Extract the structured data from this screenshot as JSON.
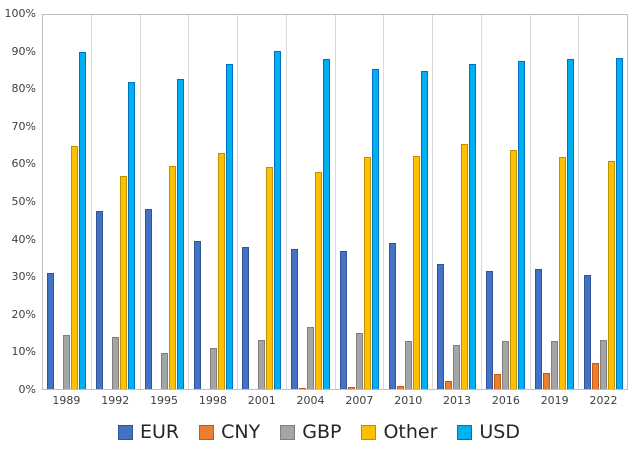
{
  "chart_data": {
    "type": "bar",
    "title": "",
    "xlabel": "",
    "ylabel": "",
    "ylim": [
      0,
      100
    ],
    "grid": "vertical",
    "legend_position": "bottom",
    "y_ticks": [
      "0%",
      "10%",
      "20%",
      "30%",
      "40%",
      "50%",
      "60%",
      "70%",
      "80%",
      "90%",
      "100%"
    ],
    "categories": [
      "1989",
      "1992",
      "1995",
      "1998",
      "2001",
      "2004",
      "2007",
      "2010",
      "2013",
      "2016",
      "2019",
      "2022"
    ],
    "series": [
      {
        "name": "EUR",
        "color": "#4472C4",
        "border": "#2F5597",
        "values": [
          31,
          47.5,
          48,
          39.5,
          38,
          37.5,
          37,
          39,
          33.5,
          31.5,
          32,
          30.5
        ]
      },
      {
        "name": "CNY",
        "color": "#ED7D31",
        "border": "#C55A11",
        "values": [
          0,
          0,
          0,
          0,
          0,
          0.2,
          0.5,
          0.9,
          2.2,
          4,
          4.3,
          7
        ]
      },
      {
        "name": "GBP",
        "color": "#A5A5A5",
        "border": "#7F7F7F",
        "values": [
          14.5,
          13.8,
          9.5,
          11,
          13,
          16.5,
          15,
          12.9,
          11.8,
          12.8,
          12.8,
          13
        ]
      },
      {
        "name": "Other",
        "color": "#FFC000",
        "border": "#BF9000",
        "values": [
          65,
          57,
          59.5,
          63,
          59.3,
          58,
          62,
          62.3,
          65.5,
          64,
          62,
          61
        ]
      },
      {
        "name": "USD",
        "color": "#00B0F0",
        "border": "#0070C0",
        "values": [
          90,
          82,
          83,
          87,
          90.3,
          88.3,
          85.6,
          84.9,
          87,
          87.6,
          88.3,
          88.4
        ]
      }
    ]
  }
}
